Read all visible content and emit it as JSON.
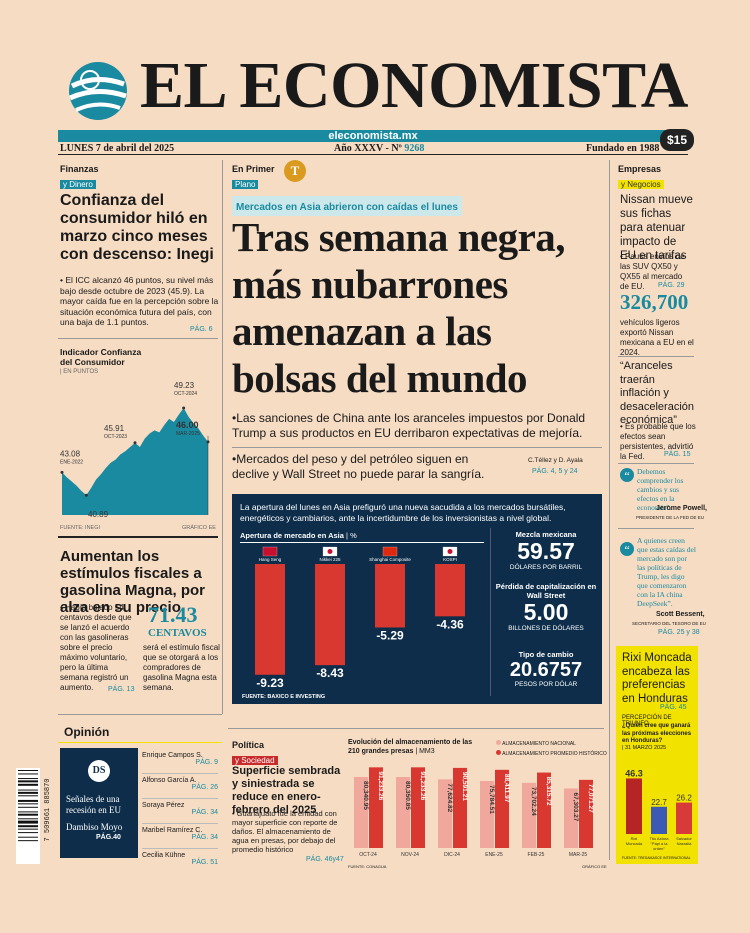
{
  "masthead": {
    "title": "EL ECONOMISTA",
    "url": "eleconomista.mx",
    "date": "LUNES 7 de abril del 2025",
    "issue_prefix": "Año XXXV - Nº",
    "issue_number": "9268",
    "founded": "Fundado en 1988",
    "price": "$15"
  },
  "left": {
    "section": "Finanzas",
    "subsection": "y Dinero",
    "headline": "Confianza del consumidor hiló en marzo cinco meses con descenso: Inegi",
    "body": "• El ICC alcanzó 46 puntos, su nivel más bajo desde octubre de 2023 (45.9). La mayor caída fue en la percepción sobre la situación económica futura del país, con una baja de 1.1 puntos.",
    "page": "PÁG. 6",
    "chart_title": "Indicador Confianza del Consumidor",
    "chart_unit": "| EN PUNTOS",
    "chart_source": "FUENTE: INEGI",
    "chart_credit": "GRÁFICO EE",
    "gas_headline": "Aumentan los estímulos fiscales a gasolina Magna, por alza en su precio",
    "gas_body": "• Había bajado 54 centavos desde que se lanzó el acuerdo con las gasolineras sobre el precio máximo voluntario, pero la última semana registró un aumento.",
    "gas_page": "PÁG. 13",
    "gas_figure": "71.43",
    "gas_unit": "CENTAVOS",
    "gas_note": "será el estímulo fiscal que se otorgará a los compradores de gasolina Magna esta semana."
  },
  "chart_data": {
    "type": "area",
    "title": "Indicador Confianza del Consumidor",
    "ylabel": "EN PUNTOS",
    "annotations": [
      {
        "label": "ENE-2022",
        "value": 43.08
      },
      {
        "label": "AGO-2022",
        "value": 40.89
      },
      {
        "label": "OCT-2023",
        "value": 45.91
      },
      {
        "label": "OCT-2024",
        "value": 49.23
      },
      {
        "label": "MAR-2025",
        "value": 46.0
      }
    ],
    "values": [
      43.08,
      42.6,
      42.2,
      41.8,
      41.3,
      40.9,
      41.6,
      42.4,
      42.9,
      43.5,
      44.0,
      44.3,
      44.8,
      45.1,
      45.5,
      45.9,
      45.5,
      46.3,
      46.8,
      47.1,
      46.9,
      47.6,
      48.2,
      47.9,
      48.6,
      49.23,
      48.4,
      47.8,
      47.3,
      46.6,
      46.0
    ],
    "ylim": [
      39,
      50
    ]
  },
  "center": {
    "section": "En Primer",
    "subsection": "Plano",
    "logo_text": "T",
    "kicker": "Mercados en Asia abrieron con caídas el lunes",
    "headline": [
      "Tras semana negra,",
      "más nubarrones",
      "amenazan a las",
      "bolsas del mundo"
    ],
    "bullet1": "•Las sanciones de China ante los aranceles impuestos por Donald Trump a sus productos en EU derribaron expectativas de mejoría.",
    "bullet2": "•Mercados del peso y del petróleo siguen en declive y Wall Street no puede parar la sangría.",
    "byline": "C.Téllez y D. Ayala",
    "byline_page": "PÁG. 4, 5 y 24",
    "box_intro": "La apertura del lunes en Asia prefiguró una nueva sacudida a los mercados bursátiles, energéticos y cambiarios, ante la incertidumbre de los inversionistas a nivel global.",
    "bars_title": "Apertura de mercado en Asia",
    "bars_unit": "| %",
    "bars_source": "FUENTE: BAXICO E INVESTING",
    "stats": [
      {
        "title": "Mezcla mexicana",
        "value": "59.57",
        "unit": "DÓLARES POR BARRIL"
      },
      {
        "title": "Pérdida de capitalización en Wall Street",
        "value": "5.00",
        "unit": "BILLONES DE DÓLARES"
      },
      {
        "title": "Tipo de cambio",
        "value": "20.6757",
        "unit": "PESOS POR DÓLAR"
      }
    ]
  },
  "asia_chart": {
    "type": "bar",
    "categories": [
      "Hang Seng",
      "Nikkei 225",
      "Shanghai Composite",
      "KOSPI"
    ],
    "values": [
      -9.23,
      -8.43,
      -5.29,
      -4.36
    ],
    "ylim": [
      -10,
      0
    ]
  },
  "right": {
    "section": "Empresas",
    "subsection": "y Negocios",
    "headline": "Nissan mueve sus fichas para atenuar impacto de EU en tarifas",
    "body": "• Pausa envíos de las SUV QX50 y QX55 al mercado de EU.",
    "page": "PÁG. 29",
    "figure": "326,700",
    "figure_note": "vehículos ligeros exportó Nissan mexicana a EU en el 2024.",
    "quote": "“Aranceles traerán inflación y desaceleración económica”",
    "quote_body": "• Es probable que los efectos sean persistentes, advirtió la Fed.",
    "quote_page": "PÁG. 15",
    "powell_quote": "Debemos comprender los cambios y sus efectos en la economía”.",
    "powell_name": "Jerome Powell,",
    "powell_role": "PRESIDENTE DE LA FED DE EU",
    "bessent_quote": "A quienes creen que estas caídas del mercado son por las políticas de Trump, les digo que comenzaron con la IA china DeepSeek”.",
    "bessent_name": "Scott Bessent,",
    "bessent_role": "SECRETARIO DEL TESORO DE EU",
    "bessent_page": "PÁG. 25 y 38",
    "rixi_headline": "Rixi Moncada encabeza las preferencias en Honduras",
    "rixi_page": "PÁG. 45",
    "poll_kicker": "PERCEPCIÓN DE TRIUNFO",
    "poll_question": "¿Quién cree que ganará las próximas elecciones en Honduras?",
    "poll_date": "| 31 MARZO 2025",
    "poll_source": "FUENTE: TRESAMASCE INTERNATIONAL"
  },
  "poll_chart": {
    "type": "bar",
    "categories": [
      "Rixi Moncada",
      "Tito Asfura \"Papi a la orden\"",
      "Salvador Nasralla"
    ],
    "values": [
      46.3,
      22.7,
      26.2
    ],
    "colors": [
      "#b52525",
      "#3b59b5",
      "#d83a3a"
    ]
  },
  "opinion": {
    "label": "Opinión",
    "feature_logo": "DS",
    "feature_title": "Señales de una recesión en EU",
    "feature_author": "Dambiso Moyo",
    "feature_page": "PÁG.40",
    "items": [
      {
        "name": "Enrique Campos S.",
        "page": "PÁG. 9"
      },
      {
        "name": "Alfonso García A.",
        "page": "PÁG. 26"
      },
      {
        "name": "Soraya Pérez",
        "page": "PÁG. 34"
      },
      {
        "name": "Maribel Ramírez C.",
        "page": "PÁG. 34"
      },
      {
        "name": "Cecilia Kühne",
        "page": "PÁG. 51"
      }
    ],
    "barcode": "7 509661 885870"
  },
  "politica": {
    "section": "Política",
    "subsection": "y Sociedad",
    "headline": "Superficie sembrada y siniestrada se reduce en enero-febrero del 2025",
    "body": "• Guanajuato fue la entidad con mayor superficie con reporte de daños. El almacenamiento de agua en presas, por debajo del promedio histórico",
    "page": "PÁG. 46y47",
    "chart_title": "Evolución del almacenamiento de las 210 grandes presas",
    "chart_unit": "| MM3",
    "legend": [
      "ALMACENAMIENTO NACIONAL",
      "ALMACENAMIENTO PROMEDIO HISTÓRICO"
    ],
    "source": "FUENTE: CONAGUA",
    "credit": "GRÁFICO EE"
  },
  "dams_chart": {
    "type": "bar",
    "categories": [
      "OCT-24",
      "NOV-24",
      "DIC-24",
      "ENE-25",
      "FEB-25",
      "MAR-25"
    ],
    "series": [
      {
        "name": "ALMACENAMIENTO NACIONAL",
        "values": [
          80340.95,
          80350.85,
          77624.82,
          75784.51,
          73702.24,
          67303.27
        ],
        "labels": [
          "80,340.95",
          "80,350.85",
          "77,624.82",
          "75,784.51",
          "73,702.24",
          "67,303.27"
        ]
      },
      {
        "name": "ALMACENAMIENTO PROMEDIO HISTÓRICO",
        "values": [
          91233.26,
          91233.26,
          90591.21,
          88411.97,
          85315.72,
          77071.27
        ],
        "labels": [
          "91,233.26",
          "91,233.26",
          "90,591.21",
          "88,411.97",
          "85,315.72",
          "77,071.27"
        ]
      }
    ],
    "ylim": [
      0,
      95000
    ]
  },
  "colors": {
    "accent": "#1a8aa0",
    "red": "#d8382f",
    "paper": "#f6dcc3",
    "navy": "#0d2d4a",
    "yellow": "#f2e200"
  }
}
